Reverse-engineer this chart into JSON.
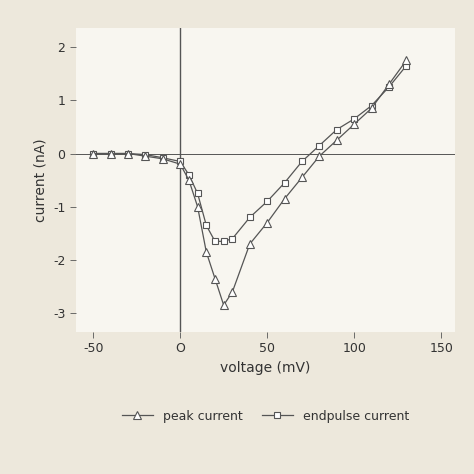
{
  "peak_voltage": [
    -50,
    -40,
    -30,
    -20,
    -10,
    0,
    5,
    10,
    15,
    20,
    25,
    30,
    40,
    50,
    60,
    70,
    80,
    90,
    100,
    110,
    120,
    130
  ],
  "peak_current": [
    0.0,
    0.0,
    0.0,
    -0.05,
    -0.1,
    -0.2,
    -0.5,
    -1.0,
    -1.85,
    -2.35,
    -2.85,
    -2.6,
    -1.7,
    -1.3,
    -0.85,
    -0.45,
    -0.05,
    0.25,
    0.55,
    0.85,
    1.3,
    1.75
  ],
  "endpulse_voltage": [
    -50,
    -40,
    -30,
    -20,
    -10,
    0,
    5,
    10,
    15,
    20,
    25,
    30,
    40,
    50,
    60,
    70,
    80,
    90,
    100,
    110,
    120,
    130
  ],
  "endpulse_current": [
    0.0,
    0.0,
    0.0,
    -0.02,
    -0.08,
    -0.15,
    -0.4,
    -0.75,
    -1.35,
    -1.65,
    -1.65,
    -1.6,
    -1.2,
    -0.9,
    -0.55,
    -0.15,
    0.15,
    0.45,
    0.65,
    0.9,
    1.25,
    1.65
  ],
  "xlabel": "voltage (mV)",
  "ylabel": "current (nA)",
  "xlim": [
    -60,
    158
  ],
  "ylim": [
    -3.35,
    2.35
  ],
  "xticks": [
    -50,
    0,
    50,
    100,
    150
  ],
  "xtick_labels": [
    "-50",
    "O",
    "50",
    "100",
    "150"
  ],
  "yticks": [
    -3,
    -2,
    -1,
    0,
    1,
    2
  ],
  "ytick_labels": [
    "-3",
    "-2",
    "-1",
    "0",
    "1",
    "2"
  ],
  "line_color": "#555555",
  "bg_color": "#ede8dc",
  "plot_bg": "#f8f6f0",
  "legend_peak_label": "peak current",
  "legend_endpulse_label": "endpulse current",
  "fontsize_ticks": 9,
  "fontsize_labels": 10
}
